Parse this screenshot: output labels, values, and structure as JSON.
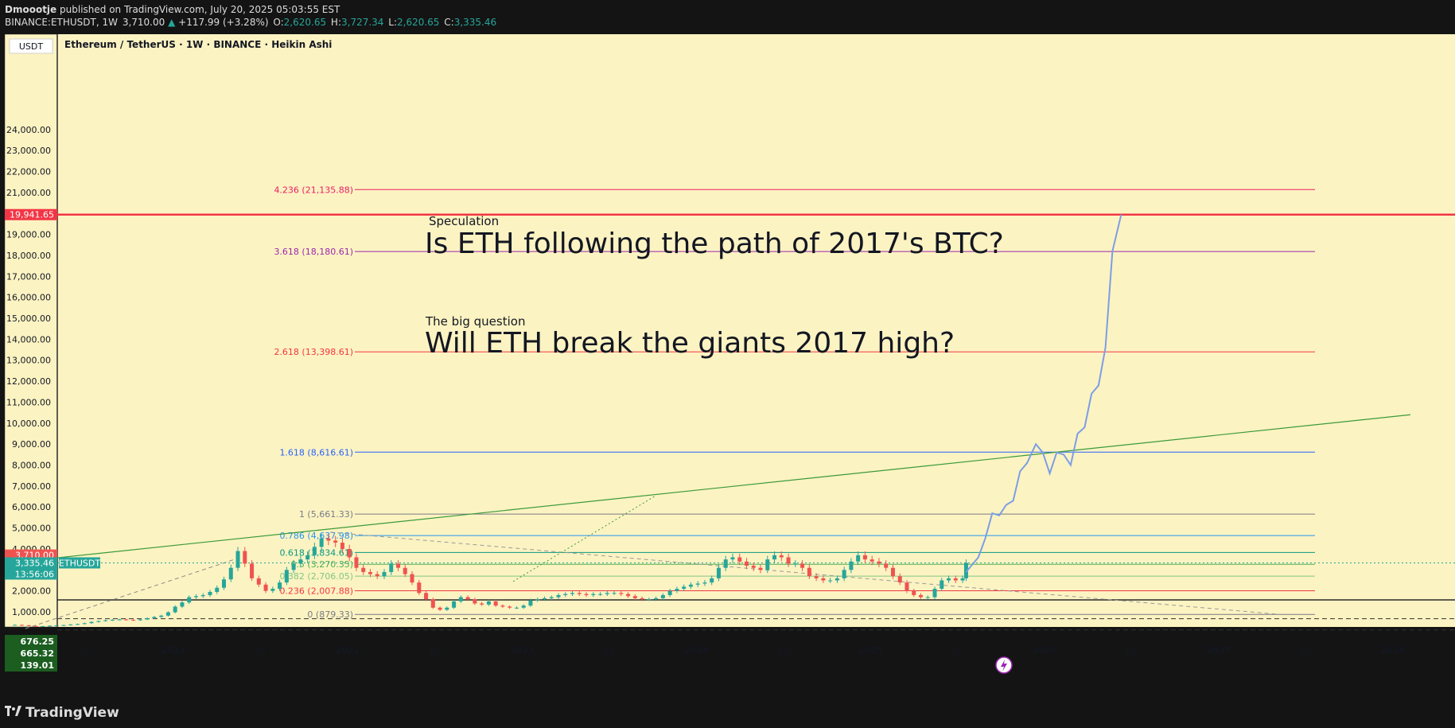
{
  "header": {
    "author": "Dmoootje",
    "published_text": "published on TradingView.com, July 20, 2025 05:03:55 EST",
    "symbol": "BINANCE:ETHUSDT, 1W",
    "last": "3,710.00",
    "change_arrow": "▲",
    "change": "+117.99 (+3.28%)",
    "o_label": "O:",
    "o_value": "2,620.65",
    "h_label": "H:",
    "h_value": "3,727.34",
    "l_label": "L:",
    "l_value": "2,620.65",
    "c_label": "C:",
    "c_value": "3,335.46"
  },
  "footer": {
    "brand": "TradingView",
    "logo_icon": "tradingview-logo-icon"
  },
  "colors": {
    "chart_bg": "#fcf3c2",
    "up_candle": "#26a69a",
    "down_candle": "#ef5350",
    "projection": "#7b9ee6",
    "trend_green": "#3b9a3b",
    "high_line": "#f23645",
    "grid_text": "#131722"
  },
  "chart_data": {
    "type": "candlestick",
    "title": "Ethereum / TetherUS · 1W · BINANCE · Heikin Ashi",
    "currency_label": "USDT",
    "ylim": [
      0,
      24700
    ],
    "y_ticks": [
      1000,
      2000,
      3000,
      4000,
      5000,
      6000,
      7000,
      8000,
      9000,
      10000,
      11000,
      12000,
      13000,
      14000,
      15000,
      16000,
      17000,
      18000,
      19000,
      20000,
      21000,
      22000,
      23000,
      24000
    ],
    "y_tick_labels": [
      "1,000.00",
      "2,000.00",
      "3,000.00",
      "4,000.00",
      "5,000.00",
      "6,000.00",
      "7,000.00",
      "8,000.00",
      "9,000.00",
      "10,000.00",
      "11,000.00",
      "12,000.00",
      "13,000.00",
      "14,000.00",
      "15,000.00",
      "16,000.00",
      "17,000.00",
      "18,000.00",
      "19,000.00",
      "20,000.00",
      "21,000.00",
      "22,000.00",
      "23,000.00",
      "24,000.00"
    ],
    "x_ticks": [
      {
        "label": "Jul",
        "bold": false,
        "t": 2020.5
      },
      {
        "label": "2021",
        "bold": true,
        "t": 2021.0
      },
      {
        "label": "Jul",
        "bold": false,
        "t": 2021.5
      },
      {
        "label": "2022",
        "bold": true,
        "t": 2022.0
      },
      {
        "label": "Jul",
        "bold": false,
        "t": 2022.5
      },
      {
        "label": "2023",
        "bold": true,
        "t": 2023.0
      },
      {
        "label": "Jul",
        "bold": false,
        "t": 2023.5
      },
      {
        "label": "2024",
        "bold": true,
        "t": 2024.0
      },
      {
        "label": "Jul",
        "bold": false,
        "t": 2024.5
      },
      {
        "label": "2025",
        "bold": true,
        "t": 2025.0
      },
      {
        "label": "Jul",
        "bold": false,
        "t": 2025.5
      },
      {
        "label": "2026",
        "bold": true,
        "t": 2026.0
      },
      {
        "label": "Jul",
        "bold": false,
        "t": 2026.5
      },
      {
        "label": "2027",
        "bold": true,
        "t": 2027.0
      },
      {
        "label": "Jul",
        "bold": false,
        "t": 2027.5
      },
      {
        "label": "2028",
        "bold": true,
        "t": 2028.0
      }
    ],
    "fib_levels": [
      {
        "ratio": 0,
        "label": "0 (879.33)",
        "price": 879.33,
        "color": "#787b86"
      },
      {
        "ratio": 0.236,
        "label": "0.236 (2,007.88)",
        "price": 2007.88,
        "color": "#f23645"
      },
      {
        "ratio": 0.382,
        "label": "0.382 (2,706.05)",
        "price": 2706.05,
        "color": "#81c784"
      },
      {
        "ratio": 0.5,
        "label": "0.5 (3,270.35)",
        "price": 3270.35,
        "color": "#4caf50"
      },
      {
        "ratio": 0.618,
        "label": "0.618 (3,834.61)",
        "price": 3834.61,
        "color": "#089981"
      },
      {
        "ratio": 0.786,
        "label": "0.786 (4,637.98)",
        "price": 4637.98,
        "color": "#2196f3"
      },
      {
        "ratio": 1,
        "label": "1 (5,661.33)",
        "price": 5661.33,
        "color": "#787b86"
      },
      {
        "ratio": 1.618,
        "label": "1.618 (8,616.61)",
        "price": 8616.61,
        "color": "#2962ff"
      },
      {
        "ratio": 2.618,
        "label": "2.618 (13,398.61)",
        "price": 13398.61,
        "color": "#f23645"
      },
      {
        "ratio": 3.618,
        "label": "3.618 (18,180.61)",
        "price": 18180.61,
        "color": "#9c27b0"
      },
      {
        "ratio": 4.236,
        "label": "4.236 (21,135.88)",
        "price": 21135.88,
        "color": "#e91e63"
      }
    ],
    "high_line": {
      "price": 19941.65,
      "label": "19,941.65"
    },
    "price_tags": [
      {
        "label": "3,710.00",
        "price": 3710,
        "bg": "#ef5350"
      },
      {
        "label": "3,335.46",
        "sub": "13:56:06",
        "price": 3335.46,
        "bg": "#26a69a",
        "symbol": "ETHUSDT"
      }
    ],
    "bottom_tags": [
      {
        "label": "676.25",
        "price": 676.25
      },
      {
        "label": "665.32",
        "price": 665.32
      },
      {
        "label": "139.01",
        "price": 139.01
      }
    ],
    "annotations": [
      {
        "small": "Speculation",
        "big": "Is ETH following the path of 2017's BTC?"
      },
      {
        "small": "The big question",
        "big": "Will ETH break the giants 2017 high?"
      }
    ],
    "trend_line": {
      "t1": 2020.3,
      "p1": 3550,
      "t2": 2028.1,
      "p2": 10400
    },
    "projection": [
      [
        2025.55,
        2900
      ],
      [
        2025.62,
        3600
      ],
      [
        2025.66,
        4500
      ],
      [
        2025.7,
        5700
      ],
      [
        2025.74,
        5600
      ],
      [
        2025.78,
        6100
      ],
      [
        2025.82,
        6300
      ],
      [
        2025.86,
        7700
      ],
      [
        2025.9,
        8100
      ],
      [
        2025.95,
        9000
      ],
      [
        2025.99,
        8600
      ],
      [
        2026.03,
        7600
      ],
      [
        2026.07,
        8600
      ],
      [
        2026.11,
        8500
      ],
      [
        2026.15,
        8000
      ],
      [
        2026.19,
        9500
      ],
      [
        2026.23,
        9800
      ],
      [
        2026.27,
        11400
      ],
      [
        2026.31,
        11800
      ],
      [
        2026.35,
        13600
      ],
      [
        2026.39,
        18200
      ],
      [
        2026.44,
        19941.65
      ]
    ],
    "weekly_closes": [
      [
        2020.09,
        380
      ],
      [
        2020.13,
        360
      ],
      [
        2020.17,
        330
      ],
      [
        2020.21,
        300
      ],
      [
        2020.25,
        320
      ],
      [
        2020.29,
        340
      ],
      [
        2020.33,
        360
      ],
      [
        2020.37,
        370
      ],
      [
        2020.41,
        400
      ],
      [
        2020.45,
        420
      ],
      [
        2020.49,
        460
      ],
      [
        2020.53,
        520
      ],
      [
        2020.57,
        560
      ],
      [
        2020.61,
        600
      ],
      [
        2020.65,
        620
      ],
      [
        2020.69,
        640
      ],
      [
        2020.73,
        620
      ],
      [
        2020.77,
        600
      ],
      [
        2020.81,
        640
      ],
      [
        2020.85,
        700
      ],
      [
        2020.89,
        760
      ],
      [
        2020.93,
        820
      ],
      [
        2020.97,
        980
      ],
      [
        2021.01,
        1250
      ],
      [
        2021.05,
        1450
      ],
      [
        2021.09,
        1700
      ],
      [
        2021.13,
        1750
      ],
      [
        2021.17,
        1800
      ],
      [
        2021.21,
        1950
      ],
      [
        2021.25,
        2150
      ],
      [
        2021.29,
        2550
      ],
      [
        2021.33,
        3100
      ],
      [
        2021.37,
        3900
      ],
      [
        2021.41,
        3300
      ],
      [
        2021.45,
        2600
      ],
      [
        2021.49,
        2300
      ],
      [
        2021.53,
        2000
      ],
      [
        2021.57,
        2100
      ],
      [
        2021.61,
        2400
      ],
      [
        2021.65,
        3000
      ],
      [
        2021.69,
        3300
      ],
      [
        2021.73,
        3500
      ],
      [
        2021.77,
        3700
      ],
      [
        2021.81,
        4100
      ],
      [
        2021.85,
        4500
      ],
      [
        2021.89,
        4400
      ],
      [
        2021.93,
        4300
      ],
      [
        2021.97,
        4000
      ],
      [
        2022.01,
        3600
      ],
      [
        2022.05,
        3100
      ],
      [
        2022.09,
        2900
      ],
      [
        2022.13,
        2800
      ],
      [
        2022.17,
        2700
      ],
      [
        2022.21,
        2900
      ],
      [
        2022.25,
        3300
      ],
      [
        2022.29,
        3100
      ],
      [
        2022.33,
        2800
      ],
      [
        2022.37,
        2400
      ],
      [
        2022.41,
        1900
      ],
      [
        2022.45,
        1600
      ],
      [
        2022.49,
        1200
      ],
      [
        2022.53,
        1100
      ],
      [
        2022.57,
        1200
      ],
      [
        2022.61,
        1500
      ],
      [
        2022.65,
        1700
      ],
      [
        2022.69,
        1600
      ],
      [
        2022.73,
        1400
      ],
      [
        2022.77,
        1350
      ],
      [
        2022.81,
        1500
      ],
      [
        2022.85,
        1300
      ],
      [
        2022.89,
        1250
      ],
      [
        2022.93,
        1200
      ],
      [
        2022.97,
        1200
      ],
      [
        2023.01,
        1300
      ],
      [
        2023.05,
        1550
      ],
      [
        2023.09,
        1600
      ],
      [
        2023.13,
        1650
      ],
      [
        2023.17,
        1700
      ],
      [
        2023.21,
        1800
      ],
      [
        2023.25,
        1850
      ],
      [
        2023.29,
        1900
      ],
      [
        2023.33,
        1850
      ],
      [
        2023.37,
        1800
      ],
      [
        2023.41,
        1850
      ],
      [
        2023.45,
        1850
      ],
      [
        2023.49,
        1900
      ],
      [
        2023.53,
        1900
      ],
      [
        2023.57,
        1850
      ],
      [
        2023.61,
        1750
      ],
      [
        2023.65,
        1650
      ],
      [
        2023.69,
        1600
      ],
      [
        2023.73,
        1600
      ],
      [
        2023.77,
        1650
      ],
      [
        2023.81,
        1800
      ],
      [
        2023.85,
        2000
      ],
      [
        2023.89,
        2100
      ],
      [
        2023.93,
        2200
      ],
      [
        2023.97,
        2300
      ],
      [
        2024.01,
        2350
      ],
      [
        2024.05,
        2400
      ],
      [
        2024.09,
        2600
      ],
      [
        2024.13,
        3100
      ],
      [
        2024.17,
        3500
      ],
      [
        2024.21,
        3600
      ],
      [
        2024.25,
        3400
      ],
      [
        2024.29,
        3200
      ],
      [
        2024.33,
        3100
      ],
      [
        2024.37,
        3000
      ],
      [
        2024.41,
        3500
      ],
      [
        2024.45,
        3700
      ],
      [
        2024.49,
        3600
      ],
      [
        2024.53,
        3300
      ],
      [
        2024.57,
        3300
      ],
      [
        2024.61,
        3100
      ],
      [
        2024.65,
        2700
      ],
      [
        2024.69,
        2600
      ],
      [
        2024.73,
        2500
      ],
      [
        2024.77,
        2500
      ],
      [
        2024.81,
        2600
      ],
      [
        2024.85,
        3000
      ],
      [
        2024.89,
        3400
      ],
      [
        2024.93,
        3700
      ],
      [
        2024.97,
        3500
      ],
      [
        2025.01,
        3400
      ],
      [
        2025.05,
        3300
      ],
      [
        2025.09,
        3100
      ],
      [
        2025.13,
        2700
      ],
      [
        2025.17,
        2400
      ],
      [
        2025.21,
        2000
      ],
      [
        2025.25,
        1800
      ],
      [
        2025.29,
        1700
      ],
      [
        2025.33,
        1700
      ],
      [
        2025.37,
        2100
      ],
      [
        2025.41,
        2500
      ],
      [
        2025.45,
        2600
      ],
      [
        2025.49,
        2500
      ],
      [
        2025.53,
        2600
      ],
      [
        2025.55,
        3335.46
      ]
    ]
  }
}
